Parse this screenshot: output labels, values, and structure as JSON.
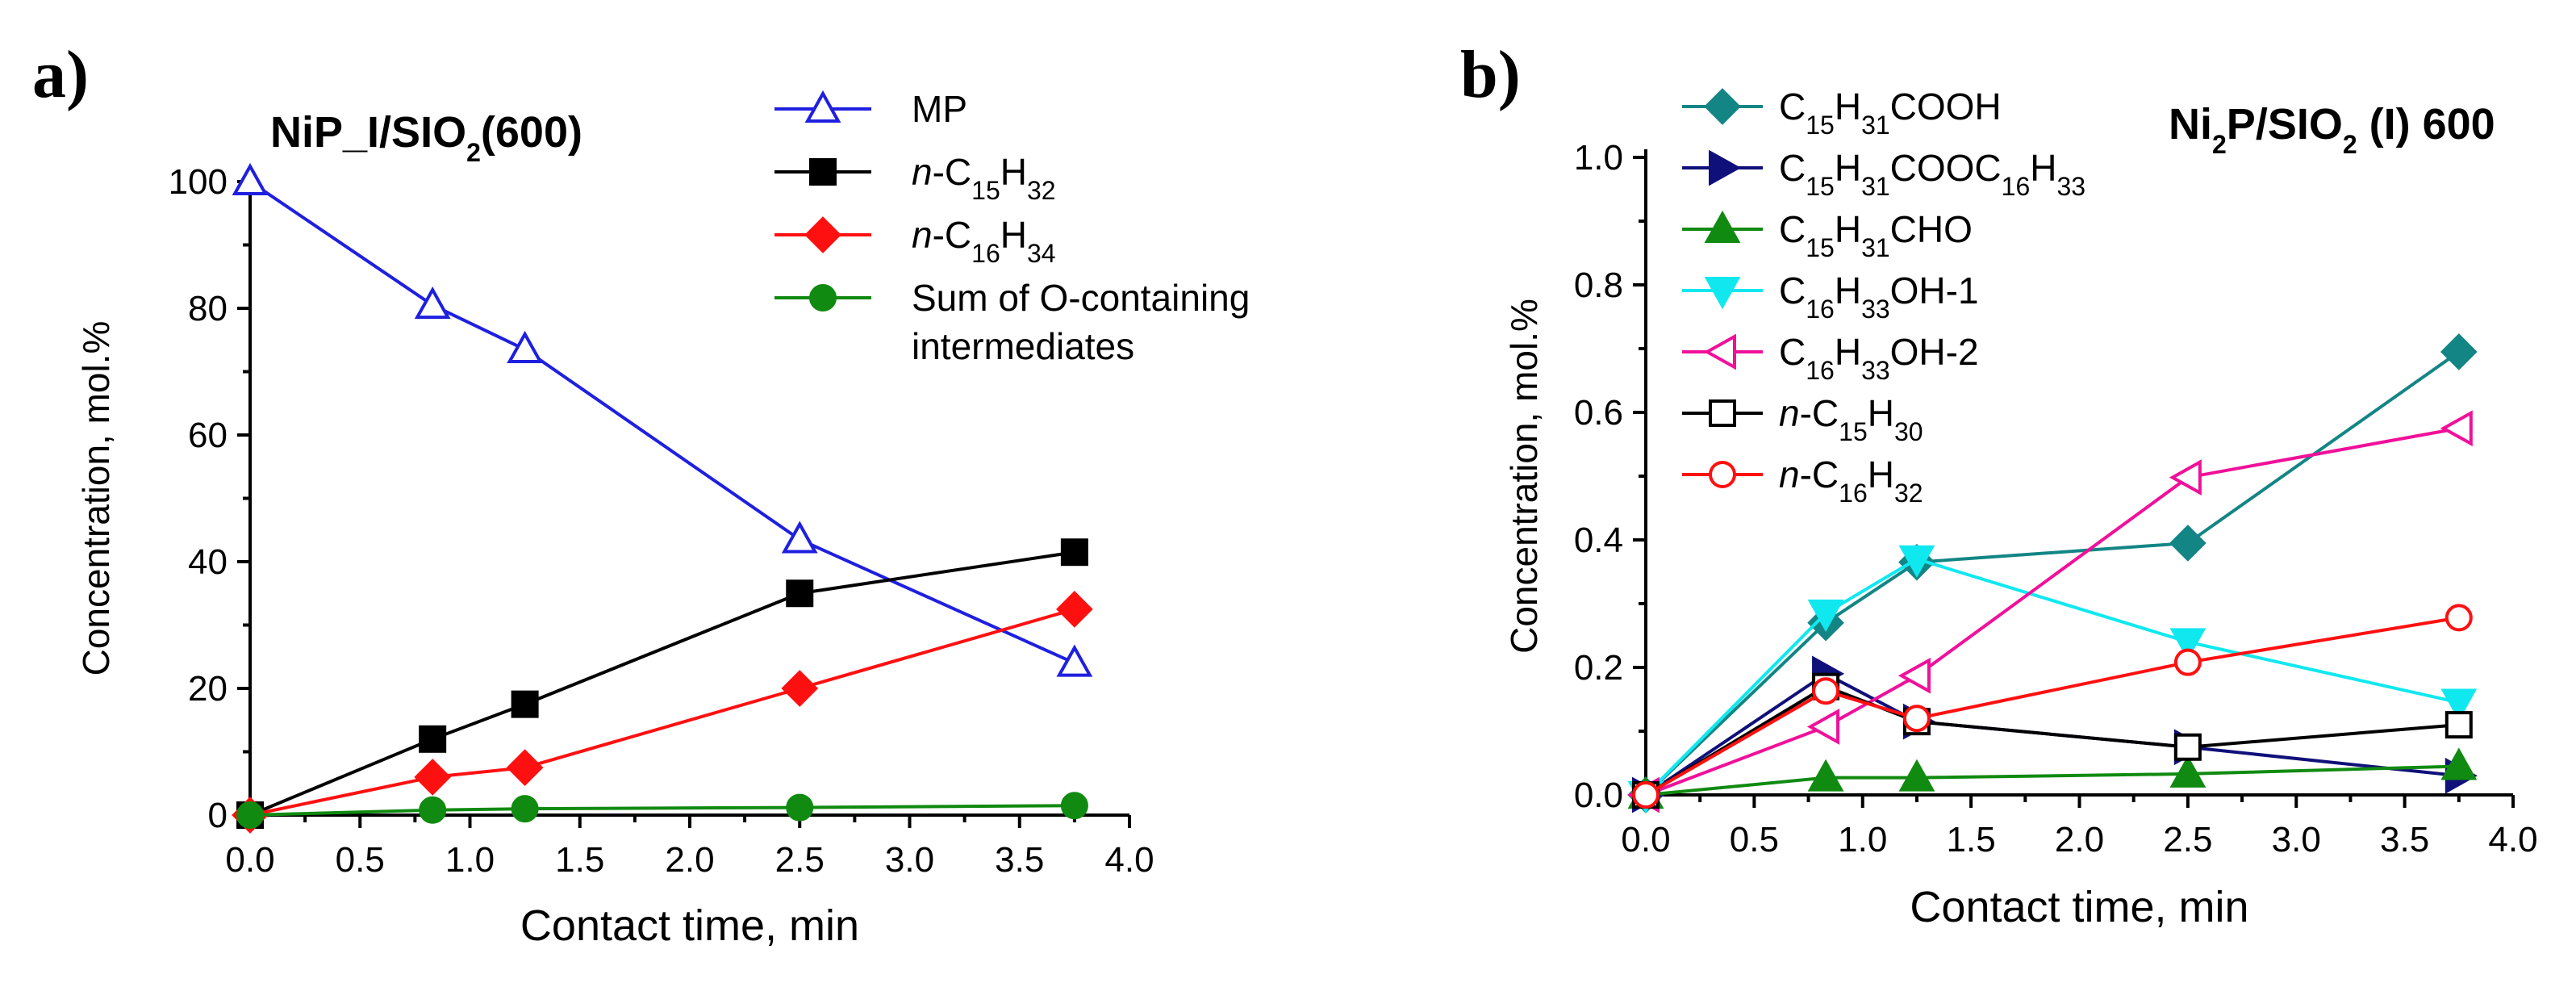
{
  "chart_data": [
    {
      "panel_label": "a)",
      "type": "line",
      "title": "NiP_I/SIO",
      "title_sub": "2",
      "title_suffix": "(600)",
      "xlabel": "Contact time, min",
      "ylabel": "Concentration, mol.%",
      "xlim": [
        0,
        4.0
      ],
      "ylim": [
        0,
        100
      ],
      "xticks": [
        "0.0",
        "0.5",
        "1.0",
        "1.5",
        "2.0",
        "2.5",
        "3.0",
        "3.5",
        "4.0"
      ],
      "yticks": [
        "0",
        "20",
        "40",
        "60",
        "80",
        "100"
      ],
      "legend_position": "top-right",
      "series": [
        {
          "name": "MP",
          "name_parts": [
            {
              "t": "MP"
            }
          ],
          "color": "#1f1fe0",
          "marker": "triangle-up-open",
          "x": [
            0,
            0.83,
            1.25,
            2.5,
            3.75
          ],
          "values": [
            100,
            80.5,
            73.5,
            43.5,
            24
          ]
        },
        {
          "name": "n-C15H32",
          "name_parts": [
            {
              "t": "n",
              "i": true
            },
            {
              "t": "-C"
            },
            {
              "t": "15",
              "sub": true
            },
            {
              "t": "H"
            },
            {
              "t": "32",
              "sub": true
            }
          ],
          "color": "#000000",
          "marker": "square-filled",
          "x": [
            0,
            0.83,
            1.25,
            2.5,
            3.75
          ],
          "values": [
            0,
            12,
            17.5,
            35,
            41.5
          ]
        },
        {
          "name": "n-C16H34",
          "name_parts": [
            {
              "t": "n",
              "i": true
            },
            {
              "t": "-C"
            },
            {
              "t": "16",
              "sub": true
            },
            {
              "t": "H"
            },
            {
              "t": "34",
              "sub": true
            }
          ],
          "color": "#ff1010",
          "marker": "diamond-filled",
          "x": [
            0,
            0.83,
            1.25,
            2.5,
            3.75
          ],
          "values": [
            0,
            6,
            7.5,
            20,
            32.5
          ]
        },
        {
          "name": "Sum of O-containing intermediates",
          "name_parts": [
            {
              "t": "Sum of O-containing"
            }
          ],
          "name_line2": "intermediates",
          "color": "#108a10",
          "marker": "circle-filled",
          "x": [
            0,
            0.83,
            1.25,
            2.5,
            3.75
          ],
          "values": [
            0,
            0.8,
            1,
            1.2,
            1.5
          ]
        }
      ]
    },
    {
      "panel_label": "b)",
      "type": "line",
      "title": "Ni",
      "title_sub": "2",
      "title_mid": "P/SIO",
      "title_sub2": "2",
      "title_suffix": " (I) 600",
      "xlabel": "Contact time, min",
      "ylabel": "Concentration, mol.%",
      "xlim": [
        0,
        4.0
      ],
      "ylim": [
        0,
        1.0
      ],
      "xticks": [
        "0.0",
        "0.5",
        "1.0",
        "1.5",
        "2.0",
        "2.5",
        "3.0",
        "3.5",
        "4.0"
      ],
      "yticks": [
        "0.0",
        "0.2",
        "0.4",
        "0.6",
        "0.8",
        "1.0"
      ],
      "legend_position": "top-left",
      "series": [
        {
          "name": "C15H31COOH",
          "name_parts": [
            {
              "t": "C"
            },
            {
              "t": "15",
              "sub": true
            },
            {
              "t": "H"
            },
            {
              "t": "31",
              "sub": true
            },
            {
              "t": "COOH"
            }
          ],
          "color": "#138585",
          "marker": "diamond-filled",
          "x": [
            0,
            0.83,
            1.25,
            2.5,
            3.75
          ],
          "values": [
            0,
            0.27,
            0.365,
            0.395,
            0.695
          ]
        },
        {
          "name": "C15H31COOC16H33",
          "name_parts": [
            {
              "t": "C"
            },
            {
              "t": "15",
              "sub": true
            },
            {
              "t": "H"
            },
            {
              "t": "31",
              "sub": true
            },
            {
              "t": "COOC"
            },
            {
              "t": "16",
              "sub": true
            },
            {
              "t": "H"
            },
            {
              "t": "33",
              "sub": true
            }
          ],
          "color": "#10107a",
          "marker": "triangle-right-filled",
          "x": [
            0,
            0.83,
            1.25,
            2.5,
            3.75
          ],
          "values": [
            0,
            0.19,
            0.115,
            0.075,
            0.03
          ]
        },
        {
          "name": "C15H31CHO",
          "name_parts": [
            {
              "t": "C"
            },
            {
              "t": "15",
              "sub": true
            },
            {
              "t": "H"
            },
            {
              "t": "31",
              "sub": true
            },
            {
              "t": "CHO"
            }
          ],
          "color": "#108a10",
          "marker": "triangle-up-filled",
          "x": [
            0,
            0.83,
            1.25,
            2.5,
            3.75
          ],
          "values": [
            0,
            0.027,
            0.027,
            0.033,
            0.045
          ]
        },
        {
          "name": "C16H33OH-1",
          "name_parts": [
            {
              "t": "C"
            },
            {
              "t": "16",
              "sub": true
            },
            {
              "t": "H"
            },
            {
              "t": "33",
              "sub": true
            },
            {
              "t": "OH-1"
            }
          ],
          "color": "#10e8f0",
          "marker": "triangle-down-filled",
          "x": [
            0,
            0.83,
            1.25,
            2.5,
            3.75
          ],
          "values": [
            0,
            0.285,
            0.37,
            0.24,
            0.145
          ]
        },
        {
          "name": "C16H33OH-2",
          "name_parts": [
            {
              "t": "C"
            },
            {
              "t": "16",
              "sub": true
            },
            {
              "t": "H"
            },
            {
              "t": "33",
              "sub": true
            },
            {
              "t": "OH-2"
            }
          ],
          "color": "#f0109a",
          "marker": "triangle-left-open",
          "x": [
            0,
            0.83,
            1.25,
            2.5,
            3.75
          ],
          "values": [
            0,
            0.107,
            0.187,
            0.498,
            0.575
          ]
        },
        {
          "name": "n-C15H30",
          "name_parts": [
            {
              "t": "n",
              "i": true
            },
            {
              "t": "-C"
            },
            {
              "t": "15",
              "sub": true
            },
            {
              "t": "H"
            },
            {
              "t": "30",
              "sub": true
            }
          ],
          "color": "#000000",
          "marker": "square-open",
          "x": [
            0,
            0.83,
            1.25,
            2.5,
            3.75
          ],
          "values": [
            0,
            0.17,
            0.115,
            0.075,
            0.11
          ]
        },
        {
          "name": "n-C16H32",
          "name_parts": [
            {
              "t": "n",
              "i": true
            },
            {
              "t": "-C"
            },
            {
              "t": "16",
              "sub": true
            },
            {
              "t": "H"
            },
            {
              "t": "32",
              "sub": true
            }
          ],
          "color": "#ff1010",
          "marker": "circle-open",
          "x": [
            0,
            0.83,
            1.25,
            2.5,
            3.75
          ],
          "values": [
            0,
            0.163,
            0.12,
            0.208,
            0.278
          ]
        }
      ]
    }
  ]
}
